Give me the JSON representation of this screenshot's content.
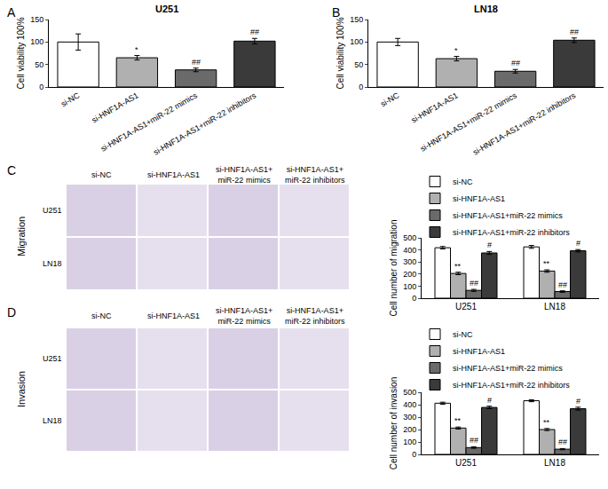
{
  "chart_data": [
    {
      "type": "bar",
      "annotations": [
        "A"
      ],
      "title": "U251",
      "ylabel": "Cell viability 100%",
      "categories": [
        "si-NC",
        "si-HNF1A-AS1",
        "si-HNF1A-AS1+miR-22 mimics",
        "si-HNF1A-AS1+miR-22 inhibitors"
      ],
      "values": [
        100,
        65,
        38,
        102
      ],
      "errors": [
        18,
        5,
        4,
        6
      ],
      "significance": [
        null,
        "*",
        "##",
        "##"
      ],
      "colors": [
        "#ffffff",
        "#b0b0b0",
        "#6a6a6a",
        "#3a3a3a"
      ],
      "ylim": [
        0,
        150
      ],
      "yticks": [
        0,
        50,
        100,
        150
      ]
    },
    {
      "type": "bar",
      "annotations": [
        "B"
      ],
      "title": "LN18",
      "ylabel": "Cell viability 100%",
      "categories": [
        "si-NC",
        "si-HNF1A-AS1",
        "si-HNF1A-AS1+miR-22 mimics",
        "si-HNF1A-AS1+miR-22 inhibitors"
      ],
      "values": [
        100,
        63,
        35,
        104
      ],
      "errors": [
        8,
        5,
        4,
        5
      ],
      "significance": [
        null,
        "*",
        "##",
        "##"
      ],
      "colors": [
        "#ffffff",
        "#b0b0b0",
        "#6a6a6a",
        "#3a3a3a"
      ],
      "ylim": [
        0,
        150
      ],
      "yticks": [
        0,
        50,
        100,
        150
      ]
    },
    {
      "type": "bar",
      "ylabel": "Cell number of migration",
      "categories": [
        "U251",
        "LN18"
      ],
      "series": [
        {
          "name": "si-NC",
          "color": "#ffffff",
          "values": [
            418,
            425
          ],
          "errors": [
            10,
            12
          ],
          "significance": [
            null,
            null
          ]
        },
        {
          "name": "si-HNF1A-AS1",
          "color": "#b0b0b0",
          "values": [
            205,
            225
          ],
          "errors": [
            10,
            10
          ],
          "significance": [
            "**",
            "**"
          ]
        },
        {
          "name": "si-HNF1A-AS1+miR-22 mimics",
          "color": "#6a6a6a",
          "values": [
            65,
            55
          ],
          "errors": [
            8,
            6
          ],
          "significance": [
            "##",
            "##"
          ]
        },
        {
          "name": "si-HNF1A-AS1+miR-22 inhibitors",
          "color": "#3a3a3a",
          "values": [
            375,
            393
          ],
          "errors": [
            12,
            10
          ],
          "significance": [
            "#",
            "#"
          ]
        }
      ],
      "ylim": [
        0,
        500
      ],
      "yticks": [
        0,
        100,
        200,
        300,
        400,
        500
      ],
      "legend": "top"
    },
    {
      "type": "bar",
      "ylabel": "Cell number of invasion",
      "categories": [
        "U251",
        "LN18"
      ],
      "series": [
        {
          "name": "si-NC",
          "color": "#ffffff",
          "values": [
            412,
            432
          ],
          "errors": [
            8,
            8
          ],
          "significance": [
            null,
            null
          ]
        },
        {
          "name": "si-HNF1A-AS1",
          "color": "#b0b0b0",
          "values": [
            212,
            200
          ],
          "errors": [
            8,
            8
          ],
          "significance": [
            "**",
            "**"
          ]
        },
        {
          "name": "si-HNF1A-AS1+miR-22 mimics",
          "color": "#6a6a6a",
          "values": [
            55,
            42
          ],
          "errors": [
            6,
            5
          ],
          "significance": [
            "##",
            "##"
          ]
        },
        {
          "name": "si-HNF1A-AS1+miR-22 inhibitors",
          "color": "#3a3a3a",
          "values": [
            378,
            368
          ],
          "errors": [
            10,
            12
          ],
          "significance": [
            "#",
            "#"
          ]
        }
      ],
      "ylim": [
        0,
        500
      ],
      "yticks": [
        0,
        100,
        200,
        300,
        400,
        500
      ],
      "legend": "top"
    }
  ],
  "image_panels": [
    {
      "panel": "C",
      "label": "Migration",
      "columns": [
        "si-NC",
        "si-HNF1A-AS1",
        "si-HNF1A-AS1+\nmiR-22 mimics",
        "si-HNF1A-AS1+\nmiR-22 inhibitors"
      ],
      "rows": [
        "U251",
        "LN18"
      ]
    },
    {
      "panel": "D",
      "label": "Invasion",
      "columns": [
        "si-NC",
        "si-HNF1A-AS1",
        "si-HNF1A-AS1+\nmiR-22 mimics",
        "si-HNF1A-AS1+\nmiR-22 inhibitors"
      ],
      "rows": [
        "U251",
        "LN18"
      ]
    }
  ]
}
